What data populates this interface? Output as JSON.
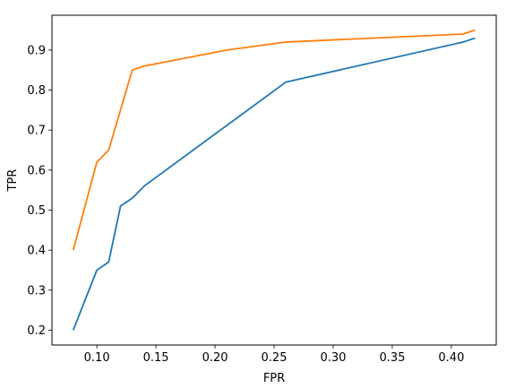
{
  "chart_data": {
    "type": "line",
    "title": "",
    "xlabel": "FPR",
    "ylabel": "TPR",
    "xlim": [
      0.062,
      0.438
    ],
    "ylim": [
      0.163,
      0.987
    ],
    "grid": false,
    "legend": "none",
    "x_ticks": [
      "0.10",
      "0.15",
      "0.20",
      "0.25",
      "0.30",
      "0.35",
      "0.40"
    ],
    "y_ticks": [
      "0.2",
      "0.3",
      "0.4",
      "0.5",
      "0.6",
      "0.7",
      "0.8",
      "0.9"
    ],
    "series": [
      {
        "color": "#1f77b4",
        "x": [
          0.08,
          0.1,
          0.11,
          0.12,
          0.13,
          0.14,
          0.26,
          0.41,
          0.42
        ],
        "y": [
          0.2,
          0.35,
          0.37,
          0.51,
          0.53,
          0.56,
          0.82,
          0.92,
          0.93
        ]
      },
      {
        "color": "#ff7f0e",
        "x": [
          0.08,
          0.1,
          0.11,
          0.12,
          0.13,
          0.14,
          0.21,
          0.26,
          0.41,
          0.42
        ],
        "y": [
          0.4,
          0.62,
          0.65,
          0.75,
          0.85,
          0.86,
          0.9,
          0.92,
          0.94,
          0.95
        ]
      }
    ]
  }
}
